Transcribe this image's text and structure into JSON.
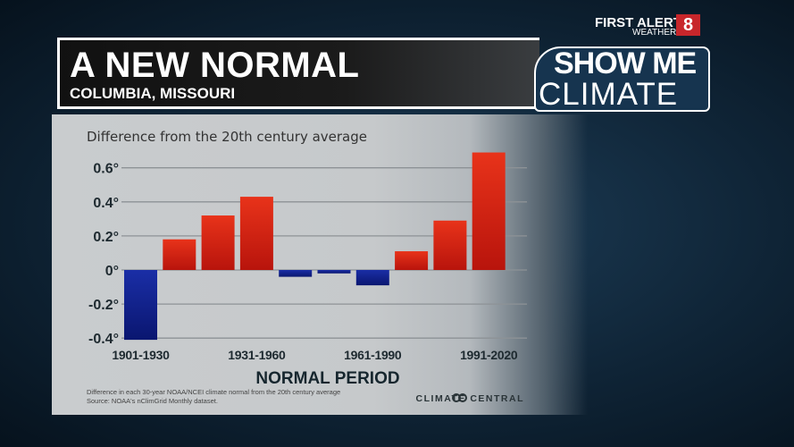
{
  "header": {
    "title": "A NEW NORMAL",
    "subtitle": "COLUMBIA, MISSOURI"
  },
  "branding": {
    "station_line1": "FIRST ALERT",
    "station_line2": "WEATHER",
    "station_logo": "8",
    "segment_line1": "SHOW ME",
    "segment_line2": "CLIMATE"
  },
  "chart_data": {
    "type": "bar",
    "title": "Difference from the 20th century average",
    "xlabel": "NORMAL PERIOD",
    "ylabel": "",
    "values": [
      -0.41,
      0.18,
      0.32,
      0.43,
      -0.04,
      -0.02,
      -0.09,
      0.11,
      0.29,
      0.69
    ],
    "tick_labels": [
      {
        "index": 0,
        "label": "1901-1930"
      },
      {
        "index": 3,
        "label": "1931-1960"
      },
      {
        "index": 6,
        "label": "1961-1990"
      },
      {
        "index": 9,
        "label": "1991-2020"
      }
    ],
    "yticks": [
      {
        "v": 0.6,
        "label": "0.6°"
      },
      {
        "v": 0.4,
        "label": "0.4°"
      },
      {
        "v": 0.2,
        "label": "0.2°"
      },
      {
        "v": 0,
        "label": "0°"
      },
      {
        "v": -0.2,
        "label": "-0.2°"
      },
      {
        "v": -0.4,
        "label": "-0.4°"
      }
    ],
    "ylim": [
      -0.42,
      0.7
    ],
    "grid": true,
    "colors": {
      "positive": "#c8190e",
      "negative": "#0f1f8f"
    },
    "footnote1": "Difference in each 30-year NOAA/NCEI climate normal from the 20th century average",
    "footnote2": "Source: NOAA's nClimGrid Monthly dataset.",
    "credit": "CLIMATE CENTRAL"
  }
}
